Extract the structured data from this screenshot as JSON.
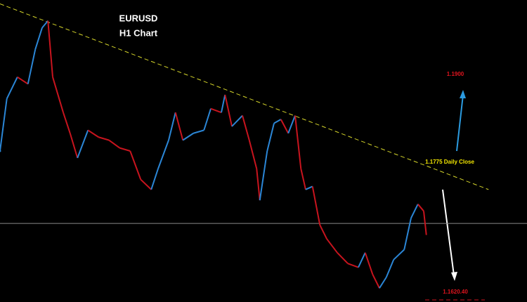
{
  "chart_data": {
    "type": "line",
    "title": "EURUSD",
    "subtitle": "H1 Chart",
    "xlim": [
      0,
      100
    ],
    "ylim": [
      1.1613,
      1.2005
    ],
    "series": [
      {
        "up_color": "#2b86d6",
        "down_color": "#c8141e",
        "x": [
          0,
          1.3,
          3.3,
          5.3,
          6.7,
          8,
          9.1,
          10,
          12,
          13.3,
          14.7,
          16.7,
          18.7,
          20.7,
          22.7,
          24.7,
          26.7,
          28.7,
          30,
          32,
          33.3,
          34.7,
          36.7,
          38.7,
          40,
          42,
          42.7,
          44,
          46,
          47.3,
          48.7,
          49.3,
          50.7,
          52,
          53.3,
          54.7,
          56,
          57.1,
          58,
          59.3,
          60.7,
          62,
          64,
          66,
          68,
          69.3,
          70.7,
          72,
          73.3,
          74.7,
          76.7,
          78,
          79.3,
          80.4,
          80.9
        ],
        "values": [
          1.1809,
          1.1877,
          1.1905,
          1.1896,
          1.1941,
          1.1969,
          1.1978,
          1.1905,
          1.1859,
          1.1832,
          1.18,
          1.1836,
          1.1827,
          1.1823,
          1.1813,
          1.1809,
          1.1772,
          1.1759,
          1.1786,
          1.1823,
          1.1859,
          1.1823,
          1.1832,
          1.1836,
          1.1864,
          1.1859,
          1.1882,
          1.1841,
          1.1855,
          1.1823,
          1.1786,
          1.1745,
          1.1809,
          1.1845,
          1.185,
          1.1832,
          1.1855,
          1.1786,
          1.1759,
          1.1763,
          1.1713,
          1.1695,
          1.1677,
          1.1663,
          1.1658,
          1.1677,
          1.1649,
          1.1631,
          1.1645,
          1.1668,
          1.1681,
          1.1722,
          1.174,
          1.1731,
          1.17
        ]
      }
    ],
    "trendline": {
      "x": [
        0,
        92.7
      ],
      "values": [
        1.2,
        1.1759
      ],
      "color": "#d4d42a"
    },
    "hline": {
      "value": 1.1715,
      "color": "#888888"
    },
    "annotations": [
      {
        "text": "1.1900",
        "color": "#e0141e"
      },
      {
        "text": "1.1775 Daily Close",
        "color": "#f2e600"
      },
      {
        "text": "1.1620.40",
        "color": "#e0141e"
      }
    ]
  }
}
